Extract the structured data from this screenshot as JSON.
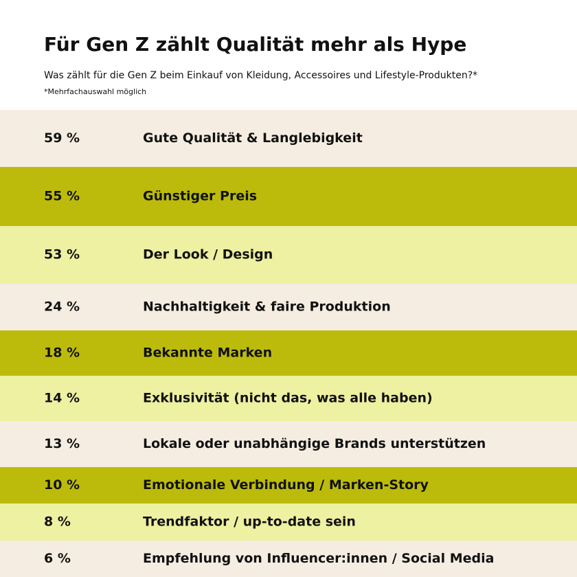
{
  "chart_data": {
    "type": "ranked-rows",
    "title": "Für Gen Z zählt Qualität mehr als Hype",
    "subtitle": "Was zählt für die Gen Z beim Einkauf von Kleidung, Accessoires und Lifestyle-Produkten?*",
    "note": "*Mehrfachauswahl möglich",
    "categories": [
      "Gute Qualität & Langlebigkeit",
      "Günstiger Preis",
      "Der Look / Design",
      "Nachhaltigkeit & faire Produktion",
      "Bekannte Marken",
      "Exklusivität (nicht das, was alle haben)",
      "Lokale oder unabhängige Brands unterstützen",
      "Emotionale Verbindung / Marken-Story",
      "Trendfaktor / up-to-date sein",
      "Empfehlung von Influencer:innen / Social Media"
    ],
    "values": [
      59,
      55,
      53,
      24,
      18,
      14,
      13,
      10,
      8,
      6
    ],
    "value_labels": [
      "59 %",
      "55 %",
      "53 %",
      "24 %",
      "18 %",
      "14 %",
      "13 %",
      "10 %",
      "8 %",
      "6 %"
    ],
    "colors": [
      "#f5ede2",
      "#bcbb0b",
      "#eef0a2"
    ]
  }
}
